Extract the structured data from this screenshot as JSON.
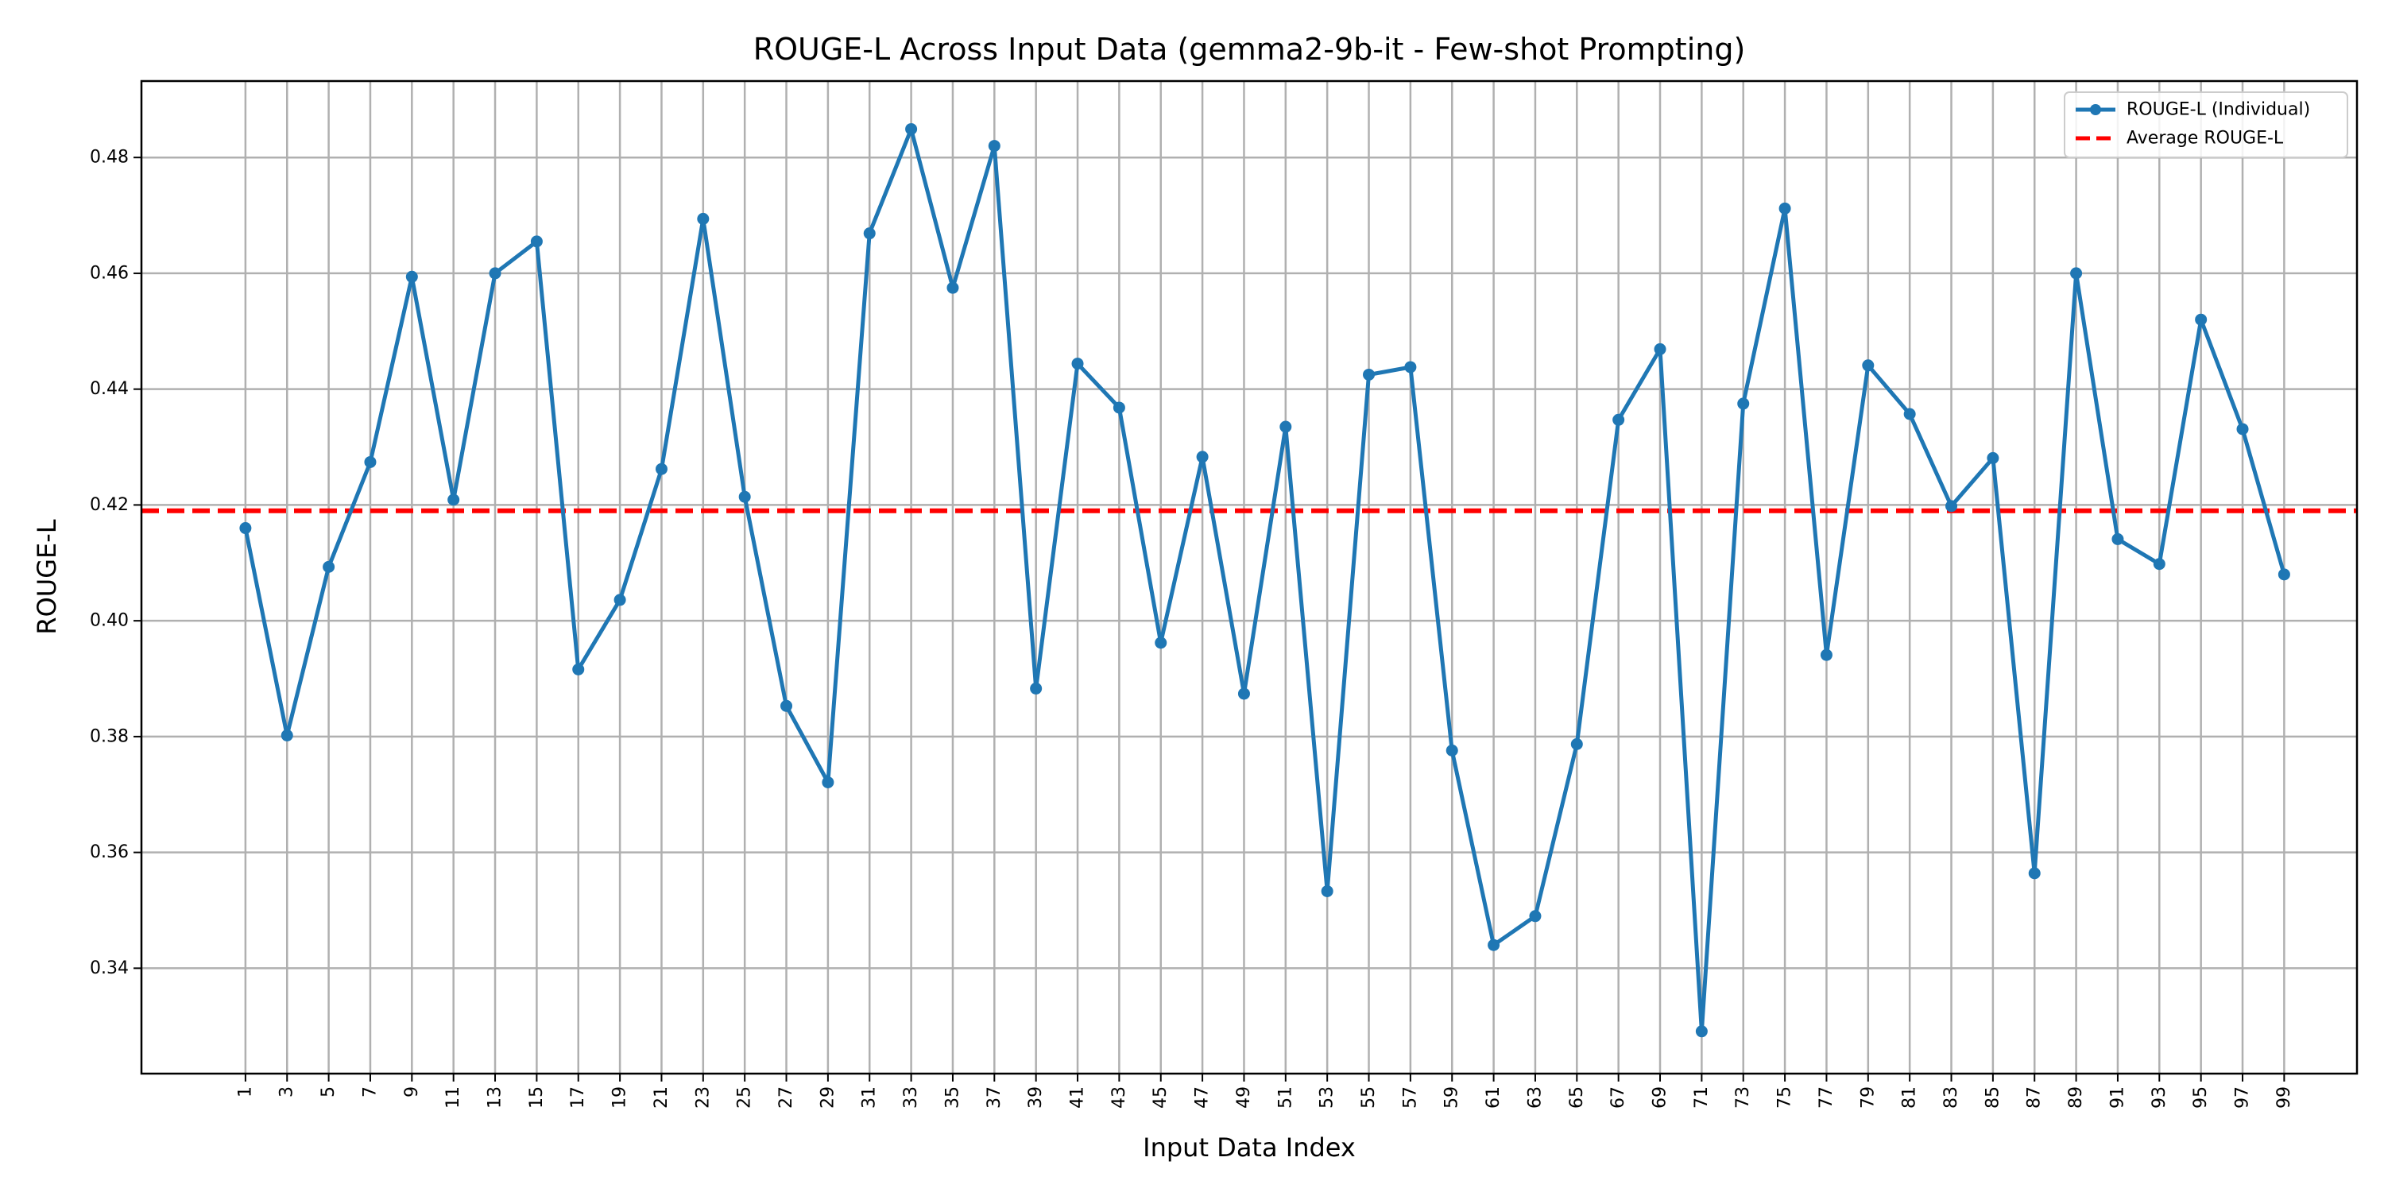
{
  "chart_data": {
    "type": "line",
    "title": "ROUGE-L Across Input Data (gemma2-9b-it - Few-shot Prompting)",
    "xlabel": "Input Data Index",
    "ylabel": "ROUGE-L",
    "xlim": [
      -4,
      102.5
    ],
    "ylim": [
      0.3218,
      0.4932
    ],
    "yticks": [
      0.34,
      0.36,
      0.38,
      0.4,
      0.42,
      0.44,
      0.46,
      0.48
    ],
    "ytick_labels": [
      "0.34",
      "0.36",
      "0.38",
      "0.40",
      "0.42",
      "0.44",
      "0.46",
      "0.48"
    ],
    "xticks": [
      1,
      3,
      5,
      7,
      9,
      11,
      13,
      15,
      17,
      19,
      21,
      23,
      25,
      27,
      29,
      31,
      33,
      35,
      37,
      39,
      41,
      43,
      45,
      47,
      49,
      51,
      53,
      55,
      57,
      59,
      61,
      63,
      65,
      67,
      69,
      71,
      73,
      75,
      77,
      79,
      81,
      83,
      85,
      87,
      89,
      91,
      93,
      95,
      97,
      99
    ],
    "xtick_labels": [
      "1",
      "3",
      "5",
      "7",
      "9",
      "11",
      "13",
      "15",
      "17",
      "19",
      "21",
      "23",
      "25",
      "27",
      "29",
      "31",
      "33",
      "35",
      "37",
      "39",
      "41",
      "43",
      "45",
      "47",
      "49",
      "51",
      "53",
      "55",
      "57",
      "59",
      "61",
      "63",
      "65",
      "67",
      "69",
      "71",
      "73",
      "75",
      "77",
      "79",
      "81",
      "83",
      "85",
      "87",
      "89",
      "91",
      "93",
      "95",
      "97",
      "99"
    ],
    "grid": true,
    "legend_position": "top-right",
    "series": [
      {
        "name": "ROUGE-L (Individual)",
        "color": "#1f77b4",
        "style": "solid-with-markers",
        "x": [
          1,
          3,
          5,
          7,
          9,
          11,
          13,
          15,
          17,
          19,
          21,
          23,
          25,
          27,
          29,
          31,
          33,
          35,
          37,
          39,
          41,
          43,
          45,
          47,
          49,
          51,
          53,
          55,
          57,
          59,
          61,
          63,
          65,
          67,
          69,
          71,
          73,
          75,
          77,
          79,
          81,
          83,
          85,
          87,
          89,
          91,
          93,
          95,
          97,
          99
        ],
        "values": [
          0.416,
          0.3802,
          0.4093,
          0.4274,
          0.4594,
          0.4209,
          0.46,
          0.4655,
          0.3916,
          0.4036,
          0.4262,
          0.4694,
          0.4214,
          0.3853,
          0.3721,
          0.4669,
          0.4849,
          0.4575,
          0.482,
          0.3883,
          0.4444,
          0.4368,
          0.3962,
          0.4283,
          0.3874,
          0.4335,
          0.3533,
          0.4425,
          0.4438,
          0.3776,
          0.344,
          0.349,
          0.3787,
          0.4347,
          0.4469,
          0.3291,
          0.4375,
          0.4712,
          0.3941,
          0.4441,
          0.4357,
          0.4198,
          0.4281,
          0.3564,
          0.46,
          0.4141,
          0.4098,
          0.452,
          0.4331,
          0.408
        ]
      },
      {
        "name": "Average ROUGE-L",
        "color": "#ff0000",
        "style": "dashed",
        "value": 0.419
      }
    ]
  }
}
